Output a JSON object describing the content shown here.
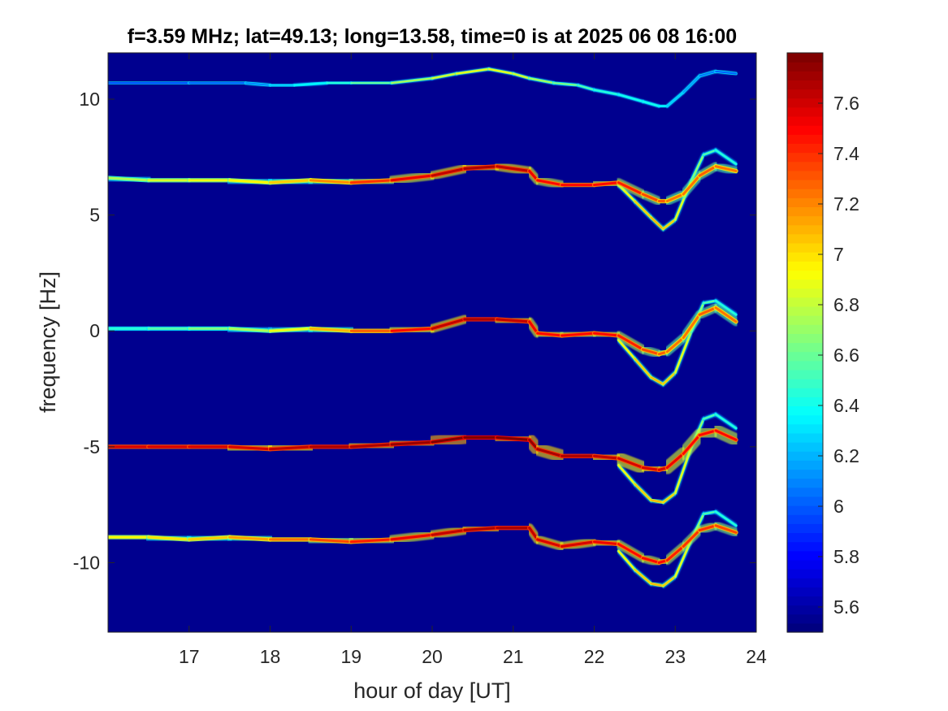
{
  "chart_data": {
    "type": "heatmap",
    "title": "f=3.59 MHz;  lat=49.13; long=13.58, time=0 is at 2025 06 08 16:00",
    "xlabel": "hour of day [UT]",
    "ylabel": "frequency [Hz]",
    "xlim": [
      16.0,
      24.0
    ],
    "ylim": [
      -13.0,
      12.0
    ],
    "x_ticks": [
      17,
      18,
      19,
      20,
      21,
      22,
      23,
      24
    ],
    "y_ticks": [
      -10,
      -5,
      0,
      5,
      10
    ],
    "colorbar": {
      "colormap": "jet",
      "clim": [
        5.5,
        7.8
      ],
      "ticks": [
        5.6,
        5.8,
        6,
        6.2,
        6.4,
        6.6,
        6.8,
        7,
        7.2,
        7.4,
        7.6
      ]
    },
    "traces": [
      {
        "label": "+10.7 Hz",
        "x": [
          16.0,
          17.0,
          17.7,
          18.0,
          18.3,
          18.7,
          19.0,
          19.5,
          20.0,
          20.3,
          20.7,
          21.0,
          21.2,
          21.5,
          21.8,
          22.0,
          22.3,
          22.6,
          22.8,
          22.9,
          23.1,
          23.3,
          23.5,
          23.75
        ],
        "y": [
          10.7,
          10.7,
          10.7,
          10.6,
          10.6,
          10.7,
          10.7,
          10.7,
          10.9,
          11.1,
          11.3,
          11.1,
          10.9,
          10.7,
          10.6,
          10.4,
          10.2,
          9.9,
          9.7,
          9.7,
          10.3,
          11.0,
          11.2,
          11.1
        ],
        "intensity": [
          5.9,
          6.0,
          6.0,
          6.2,
          6.3,
          6.4,
          6.5,
          6.7,
          6.8,
          6.9,
          6.9,
          6.9,
          6.8,
          6.7,
          6.6,
          6.5,
          6.4,
          6.4,
          6.4,
          6.3,
          6.2,
          6.1,
          6.0,
          6.0
        ]
      },
      {
        "label": "+6.6 Hz",
        "x": [
          16.0,
          16.5,
          17.0,
          17.5,
          18.0,
          18.5,
          19.0,
          19.5,
          20.0,
          20.4,
          20.8,
          21.2,
          21.3,
          21.6,
          22.0,
          22.3,
          22.6,
          22.8,
          22.9,
          23.1,
          23.3,
          23.5,
          23.75
        ],
        "y": [
          6.6,
          6.5,
          6.5,
          6.5,
          6.4,
          6.5,
          6.4,
          6.5,
          6.7,
          7.0,
          7.1,
          6.9,
          6.5,
          6.3,
          6.3,
          6.4,
          5.9,
          5.6,
          5.6,
          5.9,
          6.7,
          7.1,
          6.9
        ],
        "intensity": [
          6.7,
          6.8,
          6.9,
          6.9,
          7.0,
          7.1,
          7.3,
          7.5,
          7.6,
          7.7,
          7.7,
          7.6,
          7.5,
          7.5,
          7.5,
          7.5,
          7.4,
          7.3,
          7.3,
          7.2,
          7.3,
          7.3,
          7.2
        ]
      },
      {
        "label": "+0.1 Hz",
        "x": [
          16.0,
          16.5,
          17.0,
          17.5,
          18.0,
          18.5,
          19.0,
          19.5,
          20.0,
          20.4,
          20.8,
          21.2,
          21.3,
          21.6,
          22.0,
          22.3,
          22.6,
          22.8,
          22.9,
          23.1,
          23.3,
          23.5,
          23.75
        ],
        "y": [
          0.1,
          0.1,
          0.1,
          0.1,
          0.0,
          0.1,
          0.0,
          0.0,
          0.1,
          0.5,
          0.5,
          0.4,
          -0.1,
          -0.2,
          -0.1,
          -0.2,
          -0.8,
          -1.0,
          -0.9,
          -0.3,
          0.7,
          1.0,
          0.4
        ],
        "intensity": [
          6.4,
          6.5,
          6.6,
          6.7,
          6.8,
          7.0,
          7.2,
          7.4,
          7.6,
          7.7,
          7.7,
          7.6,
          7.5,
          7.5,
          7.5,
          7.5,
          7.4,
          7.3,
          7.3,
          7.2,
          7.3,
          7.3,
          7.2
        ]
      },
      {
        "label": "-5.0 Hz",
        "x": [
          16.0,
          16.5,
          17.0,
          17.5,
          18.0,
          18.5,
          19.0,
          19.5,
          20.0,
          20.4,
          20.8,
          21.2,
          21.3,
          21.6,
          22.0,
          22.3,
          22.6,
          22.8,
          22.9,
          23.1,
          23.3,
          23.5,
          23.75
        ],
        "y": [
          -5.0,
          -5.0,
          -5.0,
          -5.0,
          -5.1,
          -5.0,
          -5.0,
          -4.9,
          -4.8,
          -4.6,
          -4.6,
          -4.7,
          -5.1,
          -5.4,
          -5.4,
          -5.5,
          -5.9,
          -6.0,
          -5.9,
          -5.3,
          -4.5,
          -4.3,
          -4.7
        ],
        "intensity": [
          7.6,
          7.6,
          7.6,
          7.6,
          7.6,
          7.7,
          7.7,
          7.7,
          7.8,
          7.8,
          7.8,
          7.8,
          7.7,
          7.7,
          7.7,
          7.6,
          7.6,
          7.6,
          7.6,
          7.5,
          7.5,
          7.5,
          7.5
        ]
      },
      {
        "label": "-9.0 Hz",
        "x": [
          16.0,
          16.5,
          17.0,
          17.5,
          18.0,
          18.5,
          19.0,
          19.5,
          20.0,
          20.4,
          20.8,
          21.2,
          21.3,
          21.6,
          22.0,
          22.3,
          22.6,
          22.8,
          22.9,
          23.1,
          23.3,
          23.5,
          23.75
        ],
        "y": [
          -8.9,
          -8.9,
          -9.0,
          -8.9,
          -9.0,
          -9.0,
          -9.1,
          -9.0,
          -8.8,
          -8.6,
          -8.5,
          -8.5,
          -9.0,
          -9.3,
          -9.1,
          -9.2,
          -9.8,
          -10.0,
          -9.9,
          -9.3,
          -8.6,
          -8.4,
          -8.7
        ],
        "intensity": [
          6.9,
          7.0,
          7.0,
          7.1,
          7.2,
          7.3,
          7.4,
          7.5,
          7.6,
          7.7,
          7.7,
          7.7,
          7.6,
          7.6,
          7.6,
          7.5,
          7.5,
          7.5,
          7.5,
          7.4,
          7.4,
          7.4,
          7.3
        ]
      }
    ],
    "secondary_traces": [
      {
        "parent": "+6.6 Hz",
        "x": [
          22.3,
          22.5,
          22.7,
          22.85,
          23.0,
          23.2,
          23.35,
          23.5,
          23.75
        ],
        "y": [
          6.3,
          5.6,
          4.9,
          4.4,
          4.8,
          6.5,
          7.6,
          7.8,
          7.2
        ],
        "intensity": [
          6.9,
          7.0,
          7.1,
          7.1,
          7.0,
          6.8,
          6.6,
          6.5,
          6.4
        ]
      },
      {
        "parent": "+0.1 Hz",
        "x": [
          22.3,
          22.5,
          22.7,
          22.85,
          23.0,
          23.2,
          23.35,
          23.5,
          23.75
        ],
        "y": [
          -0.4,
          -1.2,
          -2.0,
          -2.3,
          -1.8,
          0.0,
          1.2,
          1.3,
          0.7
        ],
        "intensity": [
          6.9,
          7.0,
          7.1,
          7.1,
          7.0,
          6.8,
          6.6,
          6.5,
          6.4
        ]
      },
      {
        "parent": "-5.0 Hz",
        "x": [
          22.3,
          22.5,
          22.7,
          22.85,
          23.0,
          23.2,
          23.35,
          23.5,
          23.75
        ],
        "y": [
          -5.8,
          -6.6,
          -7.3,
          -7.4,
          -7.0,
          -5.0,
          -3.8,
          -3.6,
          -4.2
        ],
        "intensity": [
          6.9,
          7.0,
          7.1,
          7.1,
          7.0,
          6.8,
          6.6,
          6.5,
          6.4
        ]
      },
      {
        "parent": "-9.0 Hz",
        "x": [
          22.3,
          22.5,
          22.7,
          22.85,
          23.0,
          23.2,
          23.35,
          23.5,
          23.75
        ],
        "y": [
          -9.5,
          -10.3,
          -10.9,
          -11.0,
          -10.6,
          -9.0,
          -7.9,
          -7.8,
          -8.4
        ],
        "intensity": [
          6.9,
          7.0,
          7.1,
          7.1,
          7.0,
          6.8,
          6.6,
          6.5,
          6.4
        ]
      }
    ]
  }
}
